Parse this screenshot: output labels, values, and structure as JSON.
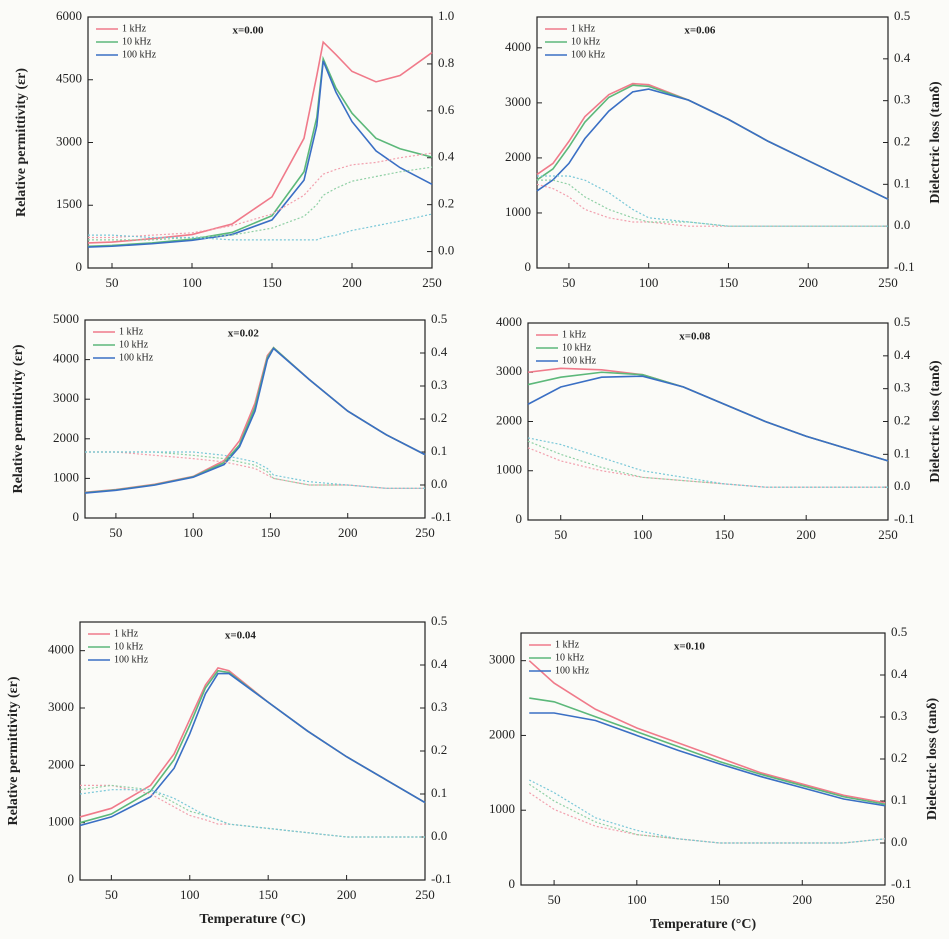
{
  "chart_data": [
    {
      "type": "line",
      "annotation": "x=0.00",
      "ylabel": "Relative permittivity (εr)",
      "x": [
        35,
        50,
        75,
        100,
        125,
        150,
        170,
        178,
        182,
        190,
        200,
        215,
        230,
        250
      ],
      "xlim": [
        35,
        250
      ],
      "xticks": [
        50,
        100,
        150,
        200,
        250
      ],
      "ylim": [
        0,
        6000
      ],
      "yticks": [
        0,
        1500,
        3000,
        4500,
        6000
      ],
      "y2lim": [
        -0.07,
        1.0
      ],
      "y2ticks": [
        {
          "value": 0,
          "label": "0.0"
        },
        0.2,
        0.4,
        0.6,
        0.8,
        {
          "value": 1,
          "label": "1.0"
        }
      ],
      "series": [
        {
          "name": "1 kHz",
          "color": "#f07a8a",
          "values": [
            600,
            620,
            700,
            800,
            1050,
            1700,
            3100,
            4600,
            5400,
            5100,
            4700,
            4450,
            4600,
            5150
          ]
        },
        {
          "name": "10 kHz",
          "color": "#5cb87a",
          "values": [
            520,
            540,
            600,
            690,
            850,
            1250,
            2300,
            3600,
            5000,
            4300,
            3700,
            3100,
            2850,
            2650
          ]
        },
        {
          "name": "100 kHz",
          "color": "#3a6fc4",
          "values": [
            500,
            520,
            580,
            660,
            800,
            1150,
            2100,
            3400,
            4950,
            4200,
            3500,
            2800,
            2400,
            2000
          ]
        },
        {
          "axis": "y2",
          "color": "#f2a0ae",
          "values": [
            0.06,
            0.06,
            0.07,
            0.08,
            0.11,
            0.16,
            0.24,
            0.3,
            0.33,
            0.35,
            0.37,
            0.38,
            0.4,
            0.42
          ]
        },
        {
          "axis": "y2",
          "color": "#8fd0a5",
          "values": [
            0.05,
            0.05,
            0.05,
            0.06,
            0.07,
            0.1,
            0.15,
            0.2,
            0.24,
            0.27,
            0.3,
            0.32,
            0.34,
            0.36
          ]
        },
        {
          "axis": "y2",
          "color": "#7ac8d8",
          "values": [
            0.07,
            0.07,
            0.06,
            0.06,
            0.05,
            0.05,
            0.05,
            0.05,
            0.06,
            0.07,
            0.09,
            0.11,
            0.13,
            0.16
          ]
        }
      ]
    },
    {
      "type": "line",
      "annotation": "x=0.06",
      "y2label": "Dielectric loss (tanδ)",
      "x": [
        30,
        40,
        50,
        60,
        75,
        90,
        100,
        125,
        150,
        175,
        200,
        225,
        250
      ],
      "xlim": [
        30,
        250
      ],
      "xticks": [
        50,
        100,
        150,
        200,
        250
      ],
      "ylim": [
        0,
        4560
      ],
      "yticks": [
        0,
        1000,
        2000,
        3000,
        4000
      ],
      "y2lim": [
        -0.1,
        0.5
      ],
      "y2ticks": [
        -0.1,
        {
          "value": 0,
          "label": "0.0"
        },
        0.1,
        0.2,
        0.3,
        0.4,
        0.5
      ],
      "series": [
        {
          "name": "1 kHz",
          "color": "#f07a8a",
          "values": [
            1700,
            1900,
            2300,
            2750,
            3150,
            3350,
            3330,
            3050,
            2700,
            2300,
            1950,
            1600,
            1250
          ]
        },
        {
          "name": "10 kHz",
          "color": "#5cb87a",
          "values": [
            1600,
            1800,
            2200,
            2650,
            3100,
            3320,
            3300,
            3050,
            2700,
            2300,
            1950,
            1600,
            1250
          ]
        },
        {
          "name": "100 kHz",
          "color": "#3a6fc4",
          "values": [
            1400,
            1600,
            1900,
            2350,
            2850,
            3200,
            3250,
            3050,
            2700,
            2300,
            1950,
            1600,
            1250
          ]
        },
        {
          "axis": "y2",
          "color": "#f2a0ae",
          "values": [
            0.1,
            0.09,
            0.07,
            0.04,
            0.02,
            0.01,
            0.01,
            0.0,
            0.0,
            0.0,
            0.0,
            0.0,
            0.0
          ]
        },
        {
          "axis": "y2",
          "color": "#8fd0a5",
          "values": [
            0.11,
            0.11,
            0.1,
            0.07,
            0.04,
            0.02,
            0.01,
            0.01,
            0.0,
            0.0,
            0.0,
            0.0,
            0.0
          ]
        },
        {
          "axis": "y2",
          "color": "#7ac8d8",
          "values": [
            0.12,
            0.12,
            0.12,
            0.11,
            0.08,
            0.04,
            0.02,
            0.01,
            0.0,
            0.0,
            0.0,
            0.0,
            0.0
          ]
        }
      ]
    },
    {
      "type": "line",
      "annotation": "x=0.02",
      "ylabel": "Relative permittivity (εr)",
      "x": [
        30,
        50,
        75,
        100,
        120,
        130,
        140,
        148,
        152,
        175,
        200,
        225,
        250
      ],
      "xlim": [
        30,
        250
      ],
      "xticks": [
        50,
        100,
        150,
        200,
        250
      ],
      "ylim": [
        0,
        5000
      ],
      "yticks": [
        0,
        1000,
        2000,
        3000,
        4000,
        5000
      ],
      "y2lim": [
        -0.1,
        0.5
      ],
      "y2ticks": [
        -0.1,
        {
          "value": 0,
          "label": "0.0"
        },
        0.1,
        0.2,
        0.3,
        0.4,
        0.5
      ],
      "series": [
        {
          "name": "1 kHz",
          "color": "#f07a8a",
          "values": [
            650,
            720,
            850,
            1050,
            1450,
            1950,
            2900,
            4100,
            4300,
            3500,
            2700,
            2100,
            1600
          ]
        },
        {
          "name": "10 kHz",
          "color": "#5cb87a",
          "values": [
            640,
            710,
            840,
            1040,
            1400,
            1850,
            2800,
            4050,
            4300,
            3500,
            2700,
            2100,
            1600
          ]
        },
        {
          "name": "100 kHz",
          "color": "#3a6fc4",
          "values": [
            630,
            700,
            830,
            1030,
            1350,
            1800,
            2700,
            4000,
            4280,
            3500,
            2700,
            2100,
            1600
          ]
        },
        {
          "axis": "y2",
          "color": "#f2a0ae",
          "values": [
            0.1,
            0.1,
            0.09,
            0.08,
            0.07,
            0.06,
            0.05,
            0.03,
            0.02,
            0.0,
            0.0,
            -0.01,
            -0.01
          ]
        },
        {
          "axis": "y2",
          "color": "#8fd0a5",
          "values": [
            0.1,
            0.1,
            0.1,
            0.09,
            0.08,
            0.07,
            0.06,
            0.04,
            0.02,
            0.0,
            0.0,
            -0.01,
            -0.01
          ]
        },
        {
          "axis": "y2",
          "color": "#7ac8d8",
          "values": [
            0.1,
            0.1,
            0.1,
            0.1,
            0.09,
            0.08,
            0.07,
            0.05,
            0.03,
            0.01,
            0.0,
            -0.01,
            -0.01
          ]
        }
      ]
    },
    {
      "type": "line",
      "annotation": "x=0.08",
      "y2label": "Dielectric loss (tanδ)",
      "x": [
        30,
        50,
        75,
        100,
        125,
        150,
        175,
        200,
        225,
        250
      ],
      "xlim": [
        30,
        250
      ],
      "xticks": [
        50,
        100,
        150,
        200,
        250
      ],
      "ylim": [
        0,
        4000
      ],
      "yticks": [
        0,
        1000,
        2000,
        3000,
        4000
      ],
      "y2lim": [
        -0.1,
        0.5
      ],
      "y2ticks": [
        -0.1,
        {
          "value": 0,
          "label": "0.0"
        },
        0.1,
        0.2,
        0.3,
        0.4,
        0.5
      ],
      "series": [
        {
          "name": "1 kHz",
          "color": "#f07a8a",
          "values": [
            3000,
            3080,
            3050,
            2950,
            2700,
            2350,
            2000,
            1700,
            1450,
            1200
          ]
        },
        {
          "name": "10 kHz",
          "color": "#5cb87a",
          "values": [
            2750,
            2900,
            3000,
            2950,
            2700,
            2350,
            2000,
            1700,
            1450,
            1200
          ]
        },
        {
          "name": "100 kHz",
          "color": "#3a6fc4",
          "values": [
            2350,
            2700,
            2900,
            2920,
            2700,
            2350,
            2000,
            1700,
            1450,
            1200
          ]
        },
        {
          "axis": "y2",
          "color": "#f2a0ae",
          "values": [
            0.12,
            0.08,
            0.05,
            0.03,
            0.02,
            0.01,
            0.0,
            0.0,
            0.0,
            0.0
          ]
        },
        {
          "axis": "y2",
          "color": "#8fd0a5",
          "values": [
            0.14,
            0.1,
            0.06,
            0.03,
            0.02,
            0.01,
            0.0,
            0.0,
            0.0,
            0.0
          ]
        },
        {
          "axis": "y2",
          "color": "#7ac8d8",
          "values": [
            0.15,
            0.13,
            0.09,
            0.05,
            0.03,
            0.01,
            0.0,
            0.0,
            0.0,
            0.0
          ]
        }
      ]
    },
    {
      "type": "line",
      "annotation": "x=0.04",
      "ylabel": "Relative permittivity (εr)",
      "xlabel": "Temperature (°C)",
      "x": [
        30,
        50,
        75,
        90,
        100,
        110,
        118,
        125,
        150,
        175,
        200,
        225,
        250
      ],
      "xlim": [
        30,
        250
      ],
      "xticks": [
        50,
        100,
        150,
        200,
        250
      ],
      "ylim": [
        0,
        4500
      ],
      "yticks": [
        0,
        1000,
        2000,
        3000,
        4000
      ],
      "y2lim": [
        -0.1,
        0.5
      ],
      "y2ticks": [
        -0.1,
        {
          "value": 0,
          "label": "0.0"
        },
        0.1,
        0.2,
        0.3,
        0.4,
        0.5
      ],
      "series": [
        {
          "name": "1 kHz",
          "color": "#f07a8a",
          "values": [
            1100,
            1250,
            1650,
            2200,
            2800,
            3400,
            3700,
            3650,
            3100,
            2600,
            2150,
            1750,
            1350
          ]
        },
        {
          "name": "10 kHz",
          "color": "#5cb87a",
          "values": [
            1000,
            1150,
            1550,
            2100,
            2700,
            3350,
            3650,
            3620,
            3100,
            2600,
            2150,
            1750,
            1350
          ]
        },
        {
          "name": "100 kHz",
          "color": "#3a6fc4",
          "values": [
            950,
            1100,
            1450,
            1950,
            2550,
            3250,
            3600,
            3600,
            3100,
            2600,
            2150,
            1750,
            1350
          ]
        },
        {
          "axis": "y2",
          "color": "#f2a0ae",
          "values": [
            0.12,
            0.12,
            0.1,
            0.07,
            0.05,
            0.04,
            0.03,
            0.03,
            0.02,
            0.01,
            0.0,
            0.0,
            0.0
          ]
        },
        {
          "axis": "y2",
          "color": "#8fd0a5",
          "values": [
            0.11,
            0.12,
            0.11,
            0.08,
            0.06,
            0.05,
            0.04,
            0.03,
            0.02,
            0.01,
            0.0,
            0.0,
            0.0
          ]
        },
        {
          "axis": "y2",
          "color": "#7ac8d8",
          "values": [
            0.1,
            0.11,
            0.11,
            0.09,
            0.07,
            0.05,
            0.04,
            0.03,
            0.02,
            0.01,
            0.0,
            0.0,
            0.0
          ]
        }
      ]
    },
    {
      "type": "line",
      "annotation": "x=0.10",
      "y2label": "Dielectric loss (tanδ)",
      "xlabel": "Temperature (°C)",
      "x": [
        35,
        50,
        75,
        100,
        125,
        150,
        175,
        200,
        225,
        250
      ],
      "xlim": [
        30,
        250
      ],
      "xticks": [
        50,
        100,
        150,
        200,
        250
      ],
      "ylim": [
        0,
        3370
      ],
      "yticks": [
        0,
        1000,
        2000,
        3000
      ],
      "y2lim": [
        -0.1,
        0.5
      ],
      "y2ticks": [
        -0.1,
        {
          "value": 0,
          "label": "0.0"
        },
        0.1,
        0.2,
        0.3,
        0.4,
        0.5
      ],
      "series": [
        {
          "name": "1 kHz",
          "color": "#f07a8a",
          "values": [
            3000,
            2700,
            2350,
            2100,
            1900,
            1700,
            1500,
            1350,
            1200,
            1100
          ]
        },
        {
          "name": "10 kHz",
          "color": "#5cb87a",
          "values": [
            2500,
            2450,
            2250,
            2050,
            1850,
            1650,
            1480,
            1330,
            1180,
            1080
          ]
        },
        {
          "name": "100 kHz",
          "color": "#3a6fc4",
          "values": [
            2300,
            2300,
            2200,
            2000,
            1800,
            1620,
            1450,
            1300,
            1150,
            1060
          ]
        },
        {
          "axis": "y2",
          "color": "#f2a0ae",
          "values": [
            0.12,
            0.08,
            0.04,
            0.02,
            0.01,
            0.0,
            0.0,
            0.0,
            0.0,
            0.01
          ]
        },
        {
          "axis": "y2",
          "color": "#8fd0a5",
          "values": [
            0.14,
            0.1,
            0.05,
            0.02,
            0.01,
            0.0,
            0.0,
            0.0,
            0.0,
            0.01
          ]
        },
        {
          "axis": "y2",
          "color": "#7ac8d8",
          "values": [
            0.15,
            0.12,
            0.06,
            0.03,
            0.01,
            0.0,
            0.0,
            0.0,
            0.0,
            0.01
          ]
        }
      ]
    }
  ]
}
